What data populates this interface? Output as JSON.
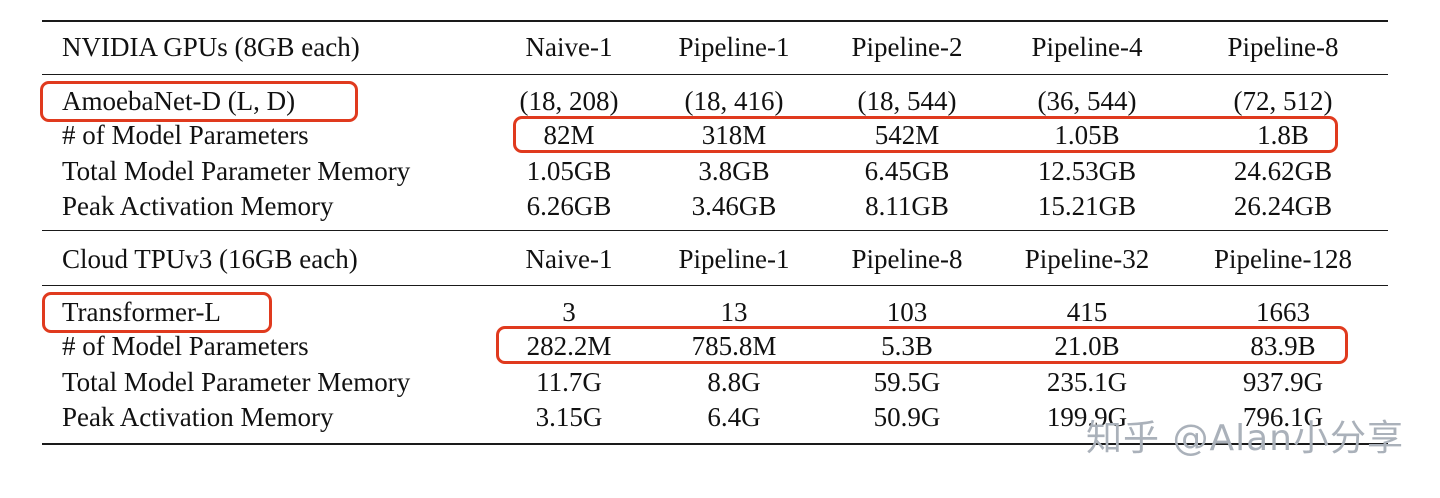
{
  "gpu_section": {
    "header": {
      "label": "NVIDIA GPUs (8GB each)",
      "columns": [
        "Naive-1",
        "Pipeline-1",
        "Pipeline-2",
        "Pipeline-4",
        "Pipeline-8"
      ]
    },
    "rows": [
      {
        "label": "AmoebaNet-D (L, D)",
        "values": [
          "(18, 208)",
          "(18, 416)",
          "(18, 544)",
          "(36, 544)",
          "(72, 512)"
        ]
      },
      {
        "label": "# of Model Parameters",
        "values": [
          "82M",
          "318M",
          "542M",
          "1.05B",
          "1.8B"
        ]
      },
      {
        "label": "Total Model Parameter Memory",
        "values": [
          "1.05GB",
          "3.8GB",
          "6.45GB",
          "12.53GB",
          "24.62GB"
        ]
      },
      {
        "label": "Peak Activation Memory",
        "values": [
          "6.26GB",
          "3.46GB",
          "8.11GB",
          "15.21GB",
          "26.24GB"
        ]
      }
    ]
  },
  "tpu_section": {
    "header": {
      "label": "Cloud TPUv3 (16GB each)",
      "columns": [
        "Naive-1",
        "Pipeline-1",
        "Pipeline-8",
        "Pipeline-32",
        "Pipeline-128"
      ]
    },
    "rows": [
      {
        "label": "Transformer-L",
        "values": [
          "3",
          "13",
          "103",
          "415",
          "1663"
        ]
      },
      {
        "label": "# of Model Parameters",
        "values": [
          "282.2M",
          "785.8M",
          "5.3B",
          "21.0B",
          "83.9B"
        ]
      },
      {
        "label": "Total Model Parameter Memory",
        "values": [
          "11.7G",
          "8.8G",
          "59.5G",
          "235.1G",
          "937.9G"
        ]
      },
      {
        "label": "Peak Activation Memory",
        "values": [
          "3.15G",
          "6.4G",
          "50.9G",
          "199.9G",
          "796.1G"
        ]
      }
    ]
  },
  "watermark": "知乎 @Alan小分享",
  "annotation_color": "#e03a1e"
}
